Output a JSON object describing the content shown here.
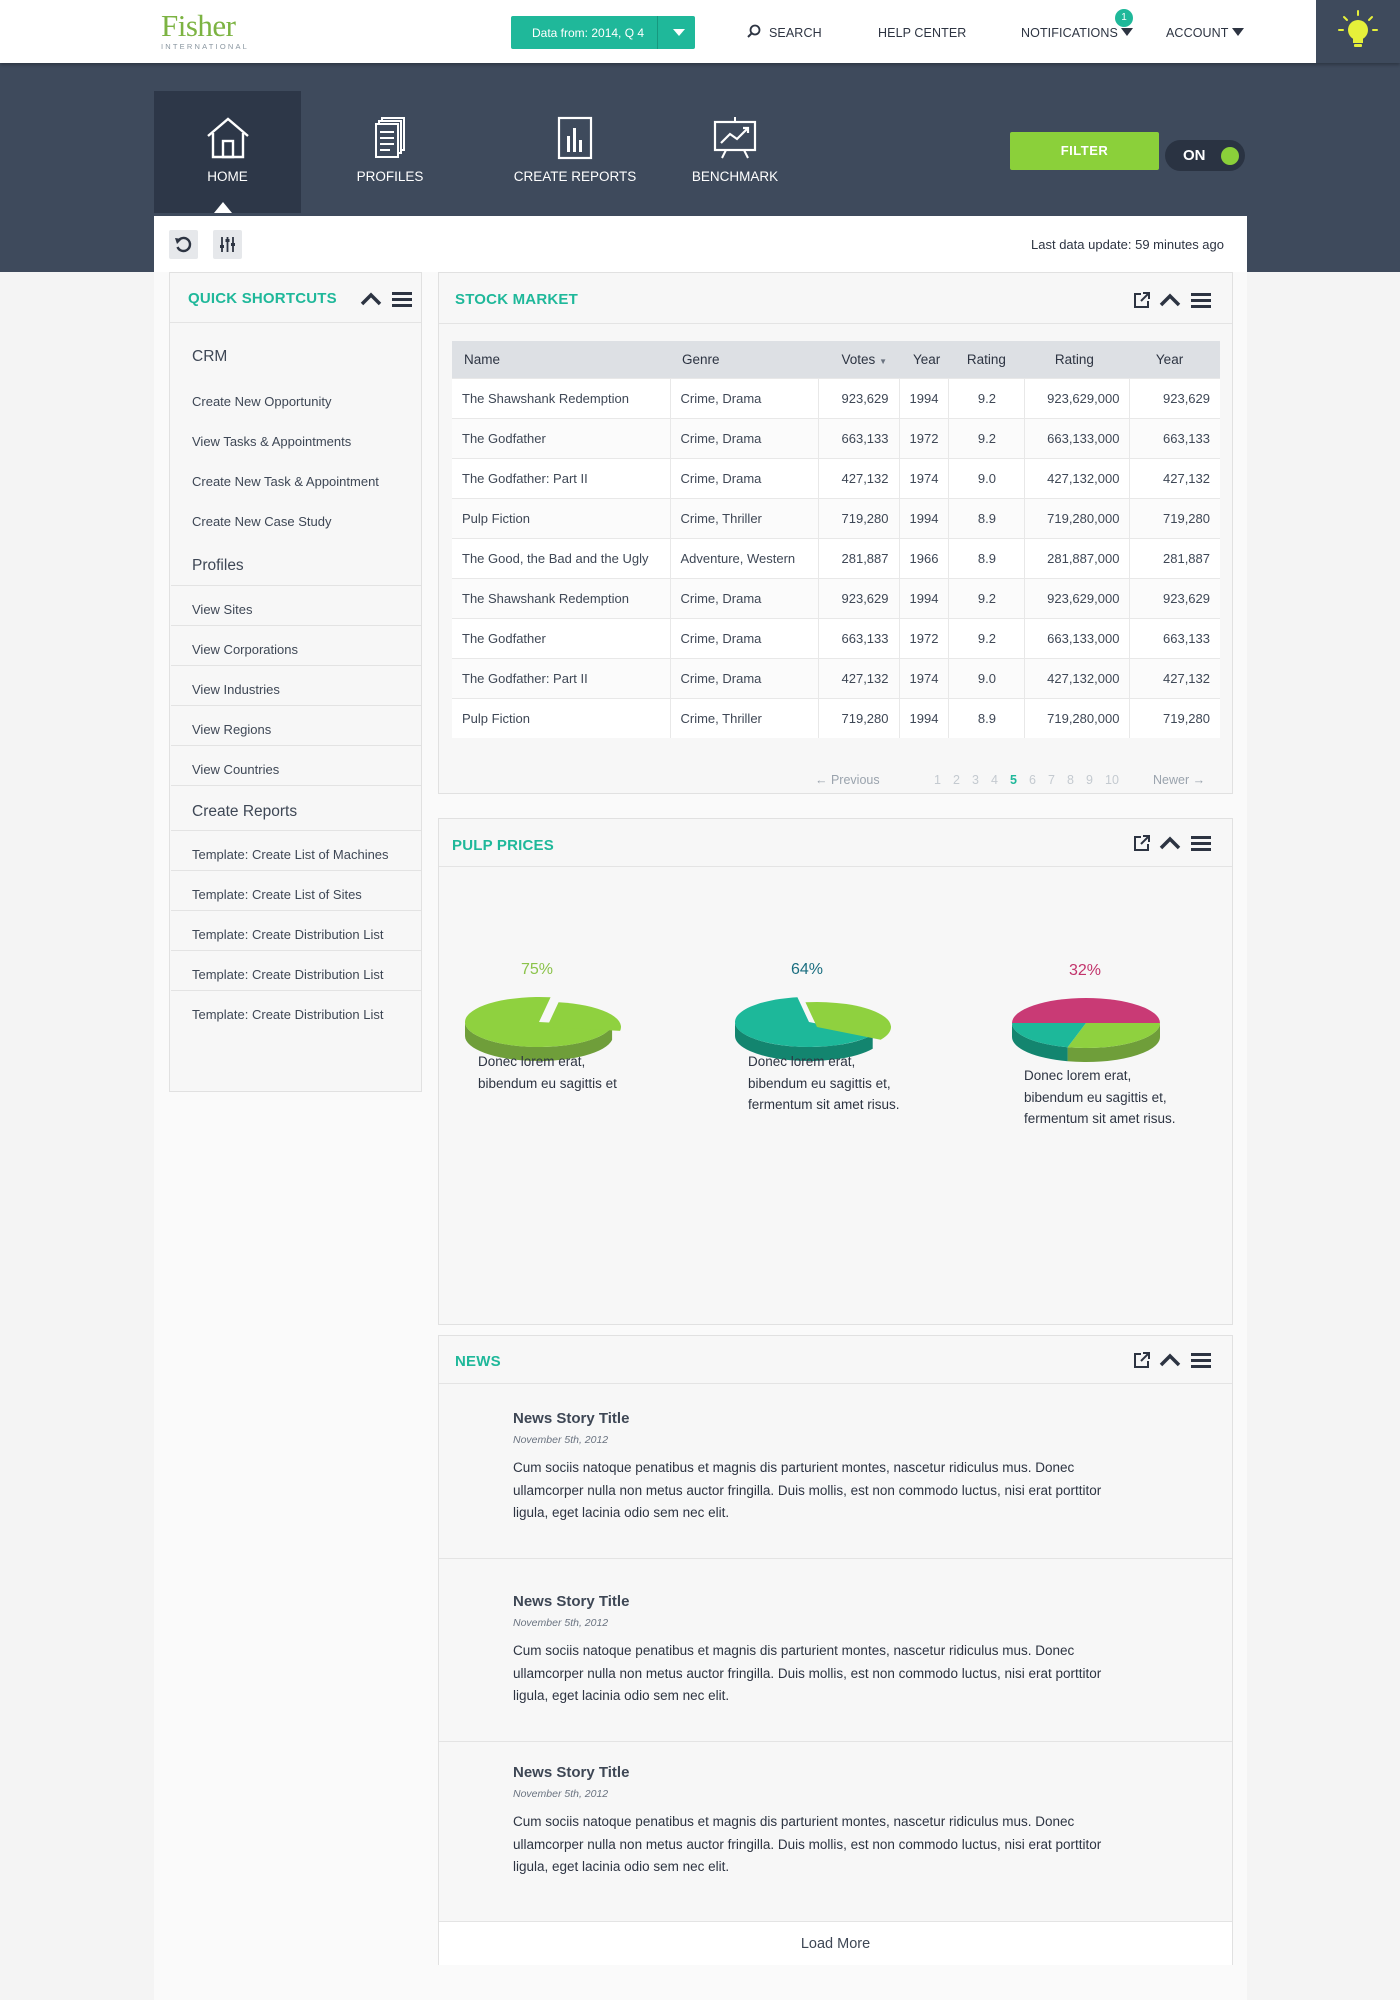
{
  "brand": {
    "name": "Fisher",
    "sub": "INTERNATIONAL"
  },
  "topbar": {
    "date_label": "Data from: 2014, Q 4",
    "search": "SEARCH",
    "help": "HELP CENTER",
    "notifications": "NOTIFICATIONS",
    "notif_count": "1",
    "account": "ACCOUNT"
  },
  "nav": {
    "home": "HOME",
    "profiles": "PROFILES",
    "reports": "CREATE REPORTS",
    "benchmark": "BENCHMARK",
    "filter": "FILTER",
    "toggle": "ON"
  },
  "toolbar": {
    "last_update": "Last data update: 59 minutes ago"
  },
  "shortcuts": {
    "title": "QUICK SHORTCUTS",
    "crm": "CRM",
    "crm_items": [
      "Create New Opportunity",
      "View Tasks & Appointments",
      "Create New Task & Appointment",
      "Create New Case Study"
    ],
    "profiles": "Profiles",
    "profile_items": [
      "View Sites",
      "View Corporations",
      "View Industries",
      "View Regions",
      "View Countries"
    ],
    "reports": "Create Reports",
    "report_items": [
      "Template: Create List of Machines",
      "Template: Create List of Sites",
      "Template: Create Distribution List",
      "Template: Create Distribution List",
      "Template: Create Distribution List"
    ]
  },
  "stock": {
    "title": "STOCK MARKET",
    "headers": [
      "Name",
      "Genre",
      "Votes",
      "Year",
      "Rating",
      "Rating",
      "Year"
    ],
    "rows": [
      [
        "The Shawshank Redemption",
        "Crime, Drama",
        "923,629",
        "1994",
        "9.2",
        "923,629,000",
        "923,629"
      ],
      [
        "The Godfather",
        "Crime, Drama",
        "663,133",
        "1972",
        "9.2",
        "663,133,000",
        "663,133"
      ],
      [
        "The Godfather: Part II",
        "Crime, Drama",
        "427,132",
        "1974",
        "9.0",
        "427,132,000",
        "427,132"
      ],
      [
        "Pulp Fiction",
        "Crime, Thriller",
        "719,280",
        "1994",
        "8.9",
        "719,280,000",
        "719,280"
      ],
      [
        "The Good, the Bad and the Ugly",
        "Adventure, Western",
        "281,887",
        "1966",
        "8.9",
        "281,887,000",
        "281,887"
      ],
      [
        "The Shawshank Redemption",
        "Crime, Drama",
        "923,629",
        "1994",
        "9.2",
        "923,629,000",
        "923,629"
      ],
      [
        "The Godfather",
        "Crime, Drama",
        "663,133",
        "1972",
        "9.2",
        "663,133,000",
        "663,133"
      ],
      [
        "The Godfather: Part II",
        "Crime, Drama",
        "427,132",
        "1974",
        "9.0",
        "427,132,000",
        "427,132"
      ],
      [
        "Pulp Fiction",
        "Crime, Thriller",
        "719,280",
        "1994",
        "8.9",
        "719,280,000",
        "719,280"
      ]
    ],
    "previous": "← Previous",
    "next": "Newer →",
    "pages": [
      "1",
      "2",
      "3",
      "4",
      "5",
      "6",
      "7",
      "8",
      "9",
      "10"
    ],
    "current_page": "5"
  },
  "pulp": {
    "title": "PULP PRICES",
    "charts": [
      {
        "pct": "75%",
        "caption": "Donec lorem erat, bibendum eu sagittis et",
        "color": "#8bc34a"
      },
      {
        "pct": "64%",
        "caption": "Donec lorem erat, bibendum eu sagittis et, fermentum sit amet risus.",
        "color": "#1a6e80"
      },
      {
        "pct": "32%",
        "caption": "Donec lorem erat, bibendum eu sagittis et, fermentum sit amet risus.",
        "color": "#c2336b"
      }
    ]
  },
  "chart_data": [
    {
      "type": "pie",
      "values": [
        75,
        25
      ]
    },
    {
      "type": "pie",
      "values": [
        64,
        36
      ]
    },
    {
      "type": "pie",
      "values": [
        32,
        68
      ]
    }
  ],
  "news": {
    "title": "NEWS",
    "items": [
      {
        "title": "News Story Title",
        "date": "November 5th, 2012",
        "body": "Cum sociis natoque penatibus et magnis dis parturient montes, nascetur ridiculus mus. Donec ullamcorper nulla non metus auctor fringilla. Duis mollis, est non commodo luctus, nisi erat porttitor ligula, eget lacinia odio sem nec elit."
      },
      {
        "title": "News Story Title",
        "date": "November 5th, 2012",
        "body": "Cum sociis natoque penatibus et magnis dis parturient montes, nascetur ridiculus mus. Donec ullamcorper nulla non metus auctor fringilla. Duis mollis, est non commodo luctus, nisi erat porttitor ligula, eget lacinia odio sem nec elit."
      },
      {
        "title": "News Story Title",
        "date": "November 5th, 2012",
        "body": "Cum sociis natoque penatibus et magnis dis parturient montes, nascetur ridiculus mus. Donec ullamcorper nulla non metus auctor fringilla. Duis mollis, est non commodo luctus, nisi erat porttitor ligula, eget lacinia odio sem nec elit."
      }
    ],
    "load_more": "Load More"
  }
}
